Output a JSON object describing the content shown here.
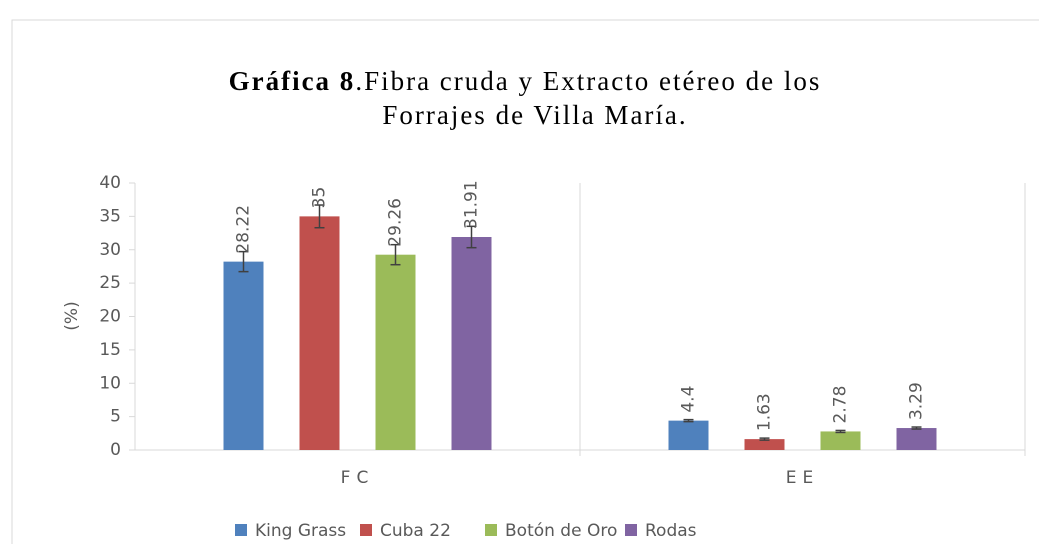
{
  "chart_data": {
    "type": "bar",
    "title": [
      "Gráfica 8",
      ".Fibra cruda y Extracto etéreo  de los",
      "Forrajes de Villa María."
    ],
    "y_label": "(%)",
    "categories": [
      "FC",
      "EE"
    ],
    "series": [
      {
        "name": "King Grass",
        "color": "#4f81bd",
        "values": [
          28.22,
          4.4
        ],
        "errors": [
          1.5,
          0.15
        ]
      },
      {
        "name": "Cuba 22",
        "color": "#c0504d",
        "values": [
          35,
          1.63
        ],
        "errors": [
          1.7,
          0.15
        ]
      },
      {
        "name": "Botón de Oro",
        "color": "#9bbb59",
        "values": [
          29.26,
          2.78
        ],
        "errors": [
          1.5,
          0.15
        ]
      },
      {
        "name": "Rodas",
        "color": "#8064a2",
        "values": [
          31.91,
          3.29
        ],
        "errors": [
          1.6,
          0.15
        ]
      }
    ],
    "ylim": [
      0,
      40
    ],
    "yticks": [
      0,
      5,
      10,
      15,
      20,
      25,
      30,
      35,
      40
    ],
    "grid": false,
    "legend": "bottom"
  }
}
